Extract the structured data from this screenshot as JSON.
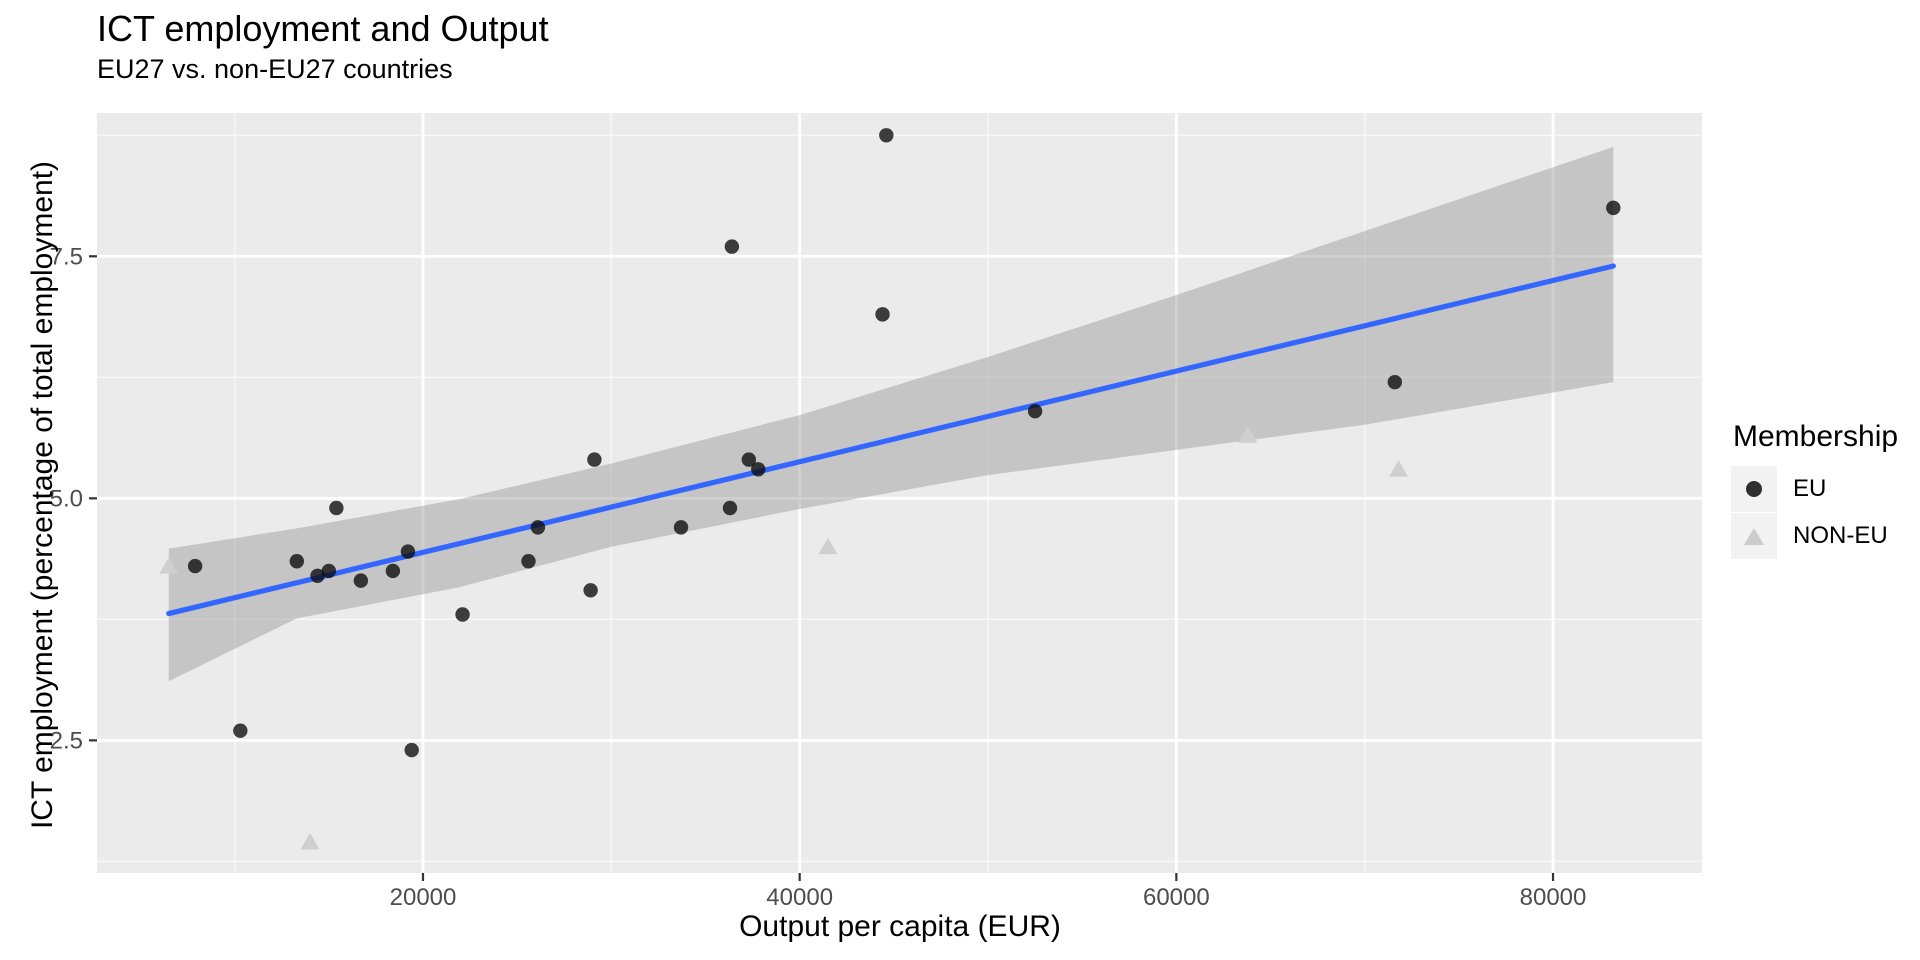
{
  "title": "ICT employment and Output",
  "subtitle": "EU27 vs. non-EU27 countries",
  "legend": {
    "title": "Membership",
    "items": [
      {
        "label": "EU",
        "shape": "circle",
        "color": "#2f2f2f"
      },
      {
        "label": "NON-EU",
        "shape": "triangle",
        "color": "#CCCCCC"
      }
    ]
  },
  "colors": {
    "panel_background": "#EBEBEB",
    "grid_major": "#FFFFFF",
    "grid_minor": "#FFFFFF",
    "eu_point": "rgba(10,10,10,0.78)",
    "non_eu_point": "#CFCFCF",
    "trend_line": "#3366FF",
    "confidence_band": "rgba(150,150,150,0.45)",
    "tick_text": "#4D4D4D",
    "tick_mark": "#333333"
  },
  "chart_data": {
    "type": "scatter",
    "title": "ICT employment and Output",
    "subtitle": "EU27 vs. non-EU27 countries",
    "xlabel": "Output per capita (EUR)",
    "ylabel": "ICT employment (percentage of total employment)",
    "xlim": [
      2690,
      87910
    ],
    "ylim": [
      1.13,
      8.98
    ],
    "x_ticks": [
      20000,
      40000,
      60000,
      80000
    ],
    "x_tick_labels": [
      "20000",
      "40000",
      "60000",
      "80000"
    ],
    "x_minor_ticks": [
      10000,
      30000,
      50000,
      70000
    ],
    "y_ticks": [
      2.5,
      5.0,
      7.5
    ],
    "y_tick_labels": [
      "2.5",
      "5.0",
      "7.5"
    ],
    "y_minor_ticks": [
      1.25,
      3.75,
      6.25,
      8.75
    ],
    "grid": true,
    "legend_position": "right",
    "series": [
      {
        "name": "EU",
        "marker": "circle",
        "points": [
          [
            7900,
            4.3
          ],
          [
            10300,
            2.6
          ],
          [
            13300,
            4.35
          ],
          [
            14400,
            4.2
          ],
          [
            15000,
            4.25
          ],
          [
            15400,
            4.9
          ],
          [
            16700,
            4.15
          ],
          [
            18400,
            4.25
          ],
          [
            19200,
            4.45
          ],
          [
            19400,
            2.4
          ],
          [
            22100,
            3.8
          ],
          [
            25600,
            4.35
          ],
          [
            26100,
            4.7
          ],
          [
            28900,
            4.05
          ],
          [
            29100,
            5.4
          ],
          [
            33700,
            4.7
          ],
          [
            36300,
            4.9
          ],
          [
            36400,
            7.6
          ],
          [
            37300,
            5.4
          ],
          [
            37800,
            5.3
          ],
          [
            44400,
            6.9
          ],
          [
            44600,
            8.75
          ],
          [
            52500,
            5.9
          ],
          [
            71600,
            6.2
          ],
          [
            83200,
            8.0
          ]
        ]
      },
      {
        "name": "NON-EU",
        "marker": "triangle",
        "points": [
          [
            6500,
            4.3
          ],
          [
            14000,
            1.45
          ],
          [
            41500,
            4.5
          ],
          [
            63800,
            5.65
          ],
          [
            71800,
            5.3
          ]
        ]
      }
    ],
    "trend": {
      "type": "linear_fit",
      "x_start": 6500,
      "y_start": 3.81,
      "x_end": 83200,
      "y_end": 7.4
    },
    "confidence_band": {
      "x": [
        6500,
        13300,
        21900,
        30000,
        40000,
        50000,
        60000,
        70000,
        83200
      ],
      "top": [
        4.48,
        4.69,
        4.99,
        5.36,
        5.86,
        6.46,
        7.1,
        7.76,
        8.63
      ],
      "bottom": [
        3.11,
        3.76,
        4.08,
        4.5,
        4.89,
        5.24,
        5.5,
        5.76,
        6.2
      ]
    }
  }
}
